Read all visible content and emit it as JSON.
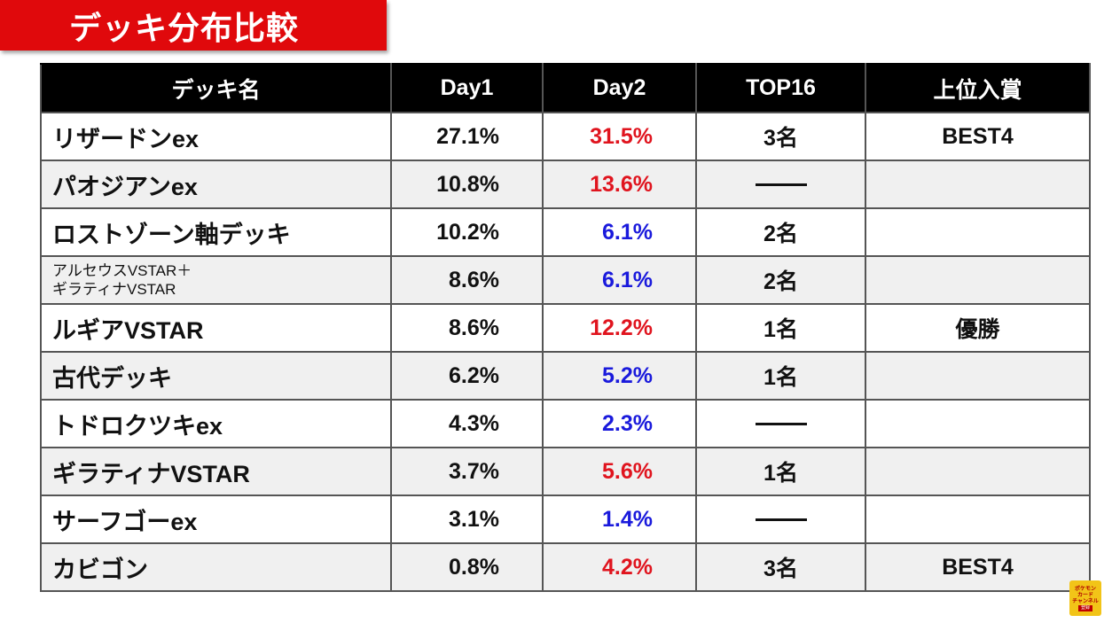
{
  "title": "デッキ分布比較",
  "colors": {
    "banner": "#e0090c",
    "header_bg": "#000000",
    "increase": "#e0141e",
    "decrease": "#1a1adc"
  },
  "table": {
    "headers": {
      "deck": "デッキ名",
      "day1": "Day1",
      "day2": "Day2",
      "top16": "TOP16",
      "prize": "上位入賞"
    },
    "rows": [
      {
        "name": "リザードンex",
        "day1": "27.1%",
        "day2": "31.5%",
        "day2_trend": "up",
        "top16": "3名",
        "prize": "BEST4"
      },
      {
        "name": "パオジアンex",
        "day1": "10.8%",
        "day2": "13.6%",
        "day2_trend": "up",
        "top16": "",
        "prize": ""
      },
      {
        "name": "ロストゾーン軸デッキ",
        "day1": "10.2%",
        "day2": "6.1%",
        "day2_trend": "down",
        "top16": "2名",
        "prize": ""
      },
      {
        "name_line1": "アルセウスVSTAR＋",
        "name_line2": "ギラティナVSTAR",
        "day1": "8.6%",
        "day2": "6.1%",
        "day2_trend": "down",
        "top16": "2名",
        "prize": ""
      },
      {
        "name": "ルギアVSTAR",
        "day1": "8.6%",
        "day2": "12.2%",
        "day2_trend": "up",
        "top16": "1名",
        "prize": "優勝"
      },
      {
        "name": "古代デッキ",
        "day1": "6.2%",
        "day2": "5.2%",
        "day2_trend": "down",
        "top16": "1名",
        "prize": ""
      },
      {
        "name": "トドロクツキex",
        "day1": "4.3%",
        "day2": "2.3%",
        "day2_trend": "down",
        "top16": "",
        "prize": ""
      },
      {
        "name": "ギラティナVSTAR",
        "day1": "3.7%",
        "day2": "5.6%",
        "day2_trend": "up",
        "top16": "1名",
        "prize": ""
      },
      {
        "name": "サーフゴーex",
        "day1": "3.1%",
        "day2": "1.4%",
        "day2_trend": "down",
        "top16": "",
        "prize": ""
      },
      {
        "name": "カビゴン",
        "day1": "0.8%",
        "day2": "4.2%",
        "day2_trend": "up",
        "top16": "3名",
        "prize": "BEST4"
      }
    ]
  },
  "logo": {
    "line1": "ポケモン",
    "line2": "カード",
    "line3": "チャンネル",
    "tag": "登録"
  }
}
